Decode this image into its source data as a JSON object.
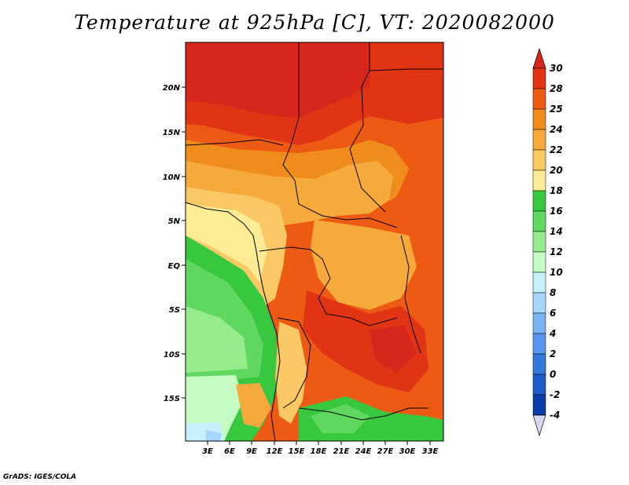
{
  "title": "Temperature at 925hPa [C], VT: 2020082000",
  "credit": "GrADS: IGES/COLA",
  "map": {
    "variable": "Temperature at 925hPa",
    "units": "C",
    "valid_time": "2020082000",
    "lat_labels": [
      "20N",
      "15N",
      "10N",
      "5N",
      "EQ",
      "5S",
      "10S",
      "15S"
    ],
    "lon_labels": [
      "3E",
      "6E",
      "9E",
      "12E",
      "15E",
      "18E",
      "21E",
      "24E",
      "27E",
      "30E",
      "33E"
    ],
    "lat_range": [
      -20,
      24.5
    ],
    "lon_range": [
      0,
      34.5
    ]
  },
  "colorbar": {
    "labels": [
      "30",
      "28",
      "25",
      "24",
      "22",
      "20",
      "18",
      "16",
      "14",
      "12",
      "10",
      "8",
      "6",
      "4",
      "2",
      "0",
      "-2",
      "-4"
    ],
    "colors": {
      "over": "#d8261c",
      "c28_30": "#e03414",
      "c25_28": "#ec5a14",
      "c24_25": "#f08c1c",
      "c22_24": "#f6aa3c",
      "c20_22": "#fac864",
      "c18_20": "#fcec96",
      "c16_18": "#38c840",
      "c14_16": "#60d860",
      "c12_14": "#96ec8c",
      "c10_12": "#c4fcc4",
      "c8_10": "#c8f0fc",
      "c6_8": "#a6d6fa",
      "c4_6": "#7ab4f2",
      "c2_4": "#5898ec",
      "c0_2": "#3478dc",
      "cm2_0": "#1e5cc8",
      "cm4_m2": "#0c3ca8",
      "under": "#08106c",
      "bottom_tip": "#d8d8f4"
    }
  }
}
